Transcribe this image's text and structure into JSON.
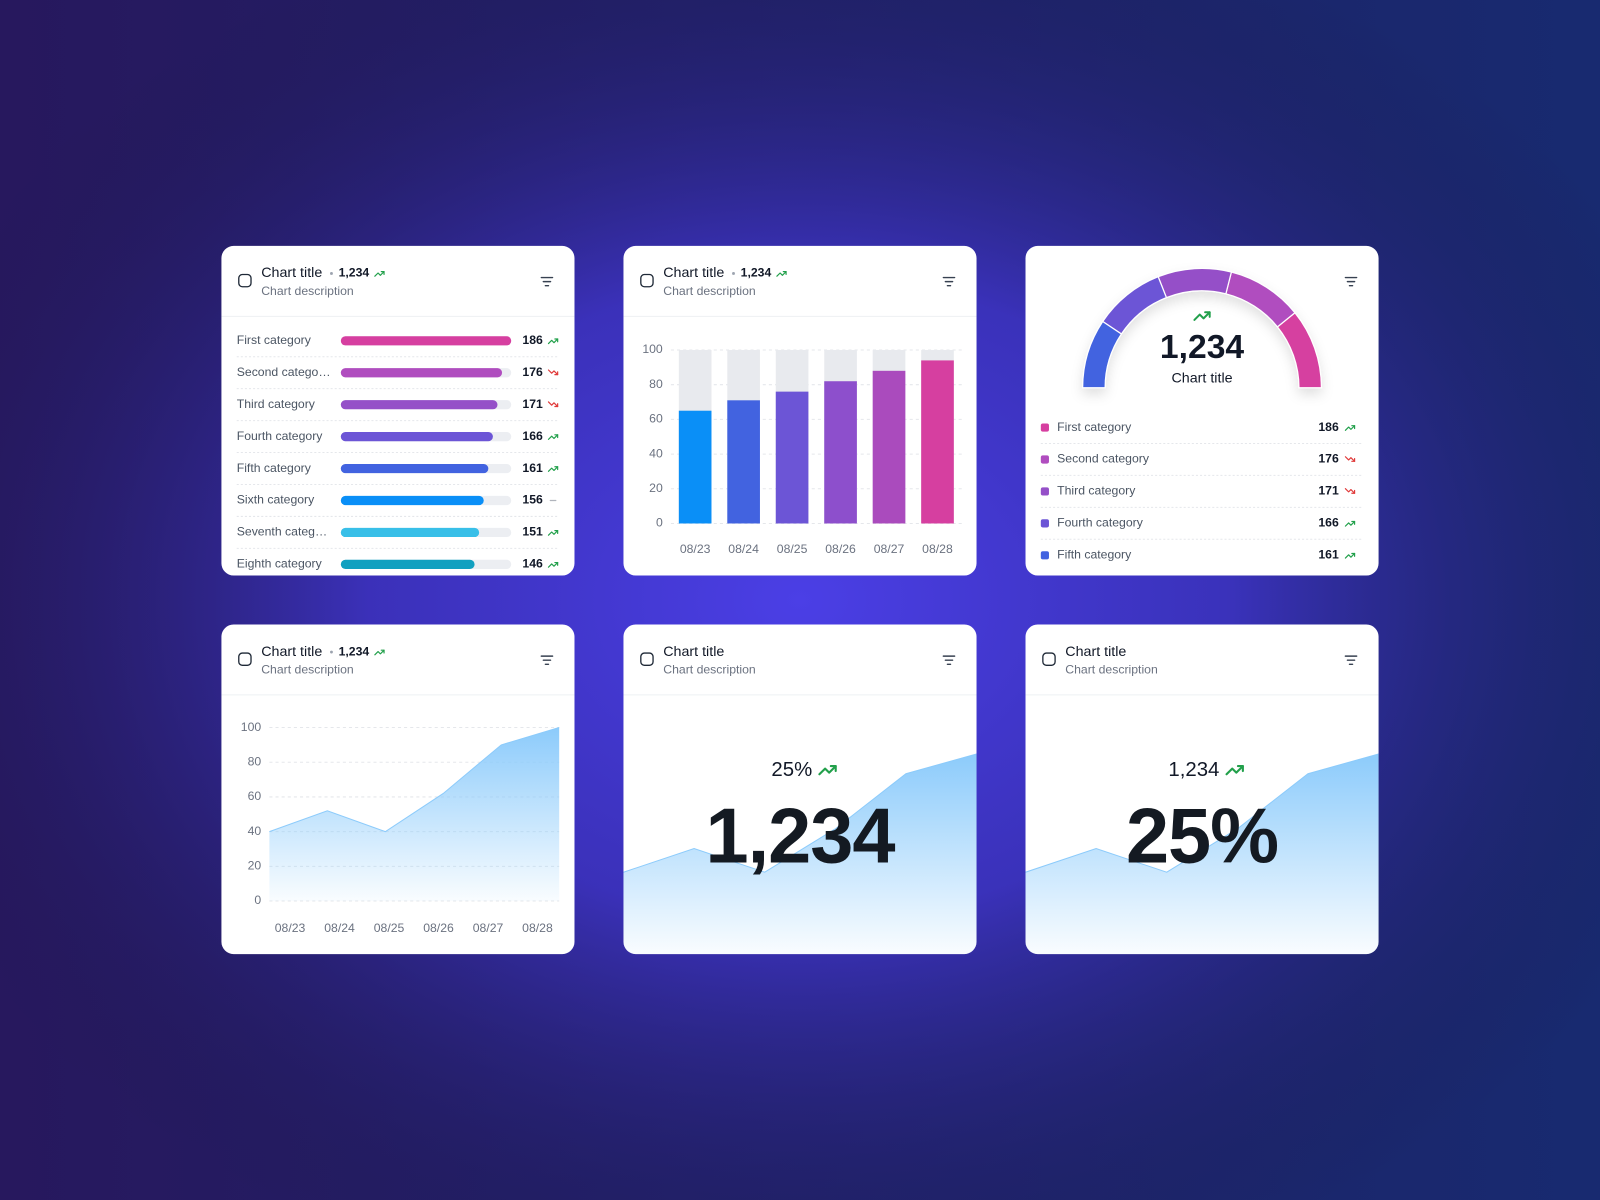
{
  "chart_data": [
    {
      "type": "hbar",
      "title": "Chart title",
      "subtitle": "Chart description",
      "total": 1234,
      "total_label": "1,234",
      "total_trend": "up",
      "categories": [
        "First category",
        "Second catego…",
        "Third category",
        "Fourth category",
        "Fifth category",
        "Sixth category",
        "Seventh categ…",
        "Eighth category"
      ],
      "values": [
        186,
        176,
        171,
        166,
        161,
        156,
        151,
        146
      ],
      "trends": [
        "up",
        "down",
        "down",
        "up",
        "up",
        "flat",
        "up",
        "up"
      ],
      "colors": [
        "#d63fa0",
        "#b04dbf",
        "#9550c8",
        "#6c55d6",
        "#4263e0",
        "#0a8ff7",
        "#38bfe8",
        "#11a0c0"
      ],
      "xlim": [
        0,
        186
      ]
    },
    {
      "type": "bar",
      "title": "Chart title",
      "subtitle": "Chart description",
      "total": 1234,
      "total_label": "1,234",
      "total_trend": "up",
      "categories": [
        "08/23",
        "08/24",
        "08/25",
        "08/26",
        "08/27",
        "08/28"
      ],
      "values": [
        65,
        71,
        76,
        82,
        88,
        94
      ],
      "colors": [
        "#0a8ff7",
        "#4263e0",
        "#6c55d6",
        "#8d4fcc",
        "#aa4bbd",
        "#d63fa0"
      ],
      "ylim": [
        0,
        100
      ],
      "yticks": [
        0,
        20,
        40,
        60,
        80,
        100
      ],
      "grid": true
    },
    {
      "type": "gauge",
      "title": "Chart title",
      "total": 1234,
      "total_label": "1,234",
      "total_trend": "up",
      "categories": [
        "First category",
        "Second category",
        "Third category",
        "Fourth category",
        "Fifth category"
      ],
      "values": [
        186,
        176,
        171,
        166,
        161
      ],
      "trends": [
        "up",
        "down",
        "down",
        "up",
        "up"
      ],
      "colors": [
        "#d63fa0",
        "#b04dbf",
        "#9550c8",
        "#6c55d6",
        "#4263e0"
      ]
    },
    {
      "type": "area",
      "title": "Chart title",
      "subtitle": "Chart description",
      "total": 1234,
      "total_label": "1,234",
      "total_trend": "up",
      "categories": [
        "08/23",
        "08/24",
        "08/25",
        "08/26",
        "08/27",
        "08/28"
      ],
      "values": [
        40,
        52,
        40,
        62,
        90,
        100
      ],
      "color": "#8ccbfb",
      "ylim": [
        0,
        100
      ],
      "yticks": [
        0,
        20,
        40,
        60,
        80,
        100
      ],
      "grid": true
    },
    {
      "type": "kpi",
      "title": "Chart title",
      "subtitle": "Chart description",
      "small_value": 25,
      "small_label": "25%",
      "small_trend": "up",
      "big_value": 1234,
      "big_label": "1,234",
      "values": [
        40,
        52,
        40,
        62,
        90,
        100
      ],
      "color": "#8ccbfb",
      "ylim": [
        0,
        130
      ]
    },
    {
      "type": "kpi",
      "title": "Chart title",
      "subtitle": "Chart description",
      "small_value": 1234,
      "small_label": "1,234",
      "small_trend": "up",
      "big_value": 25,
      "big_label": "25%",
      "values": [
        40,
        52,
        40,
        62,
        90,
        100
      ],
      "color": "#8ccbfb",
      "ylim": [
        0,
        130
      ]
    }
  ]
}
